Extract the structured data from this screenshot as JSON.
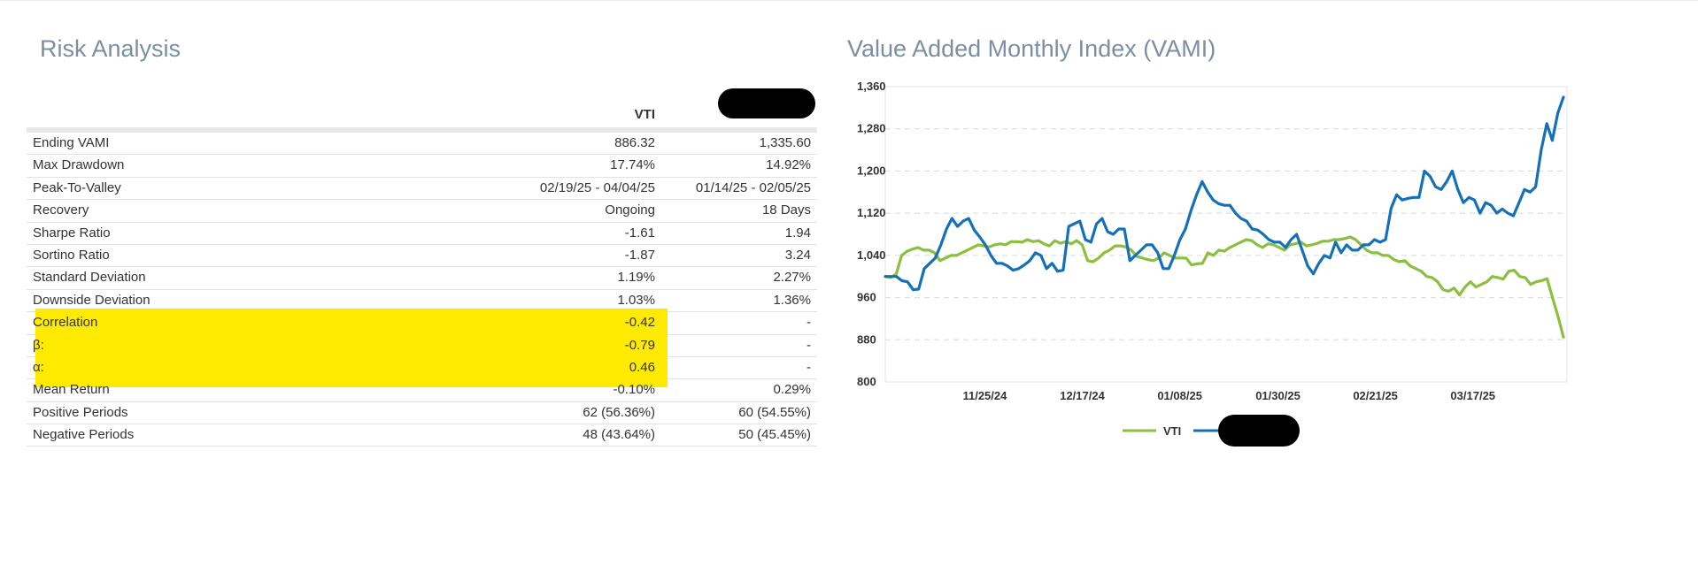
{
  "risk": {
    "title": "Risk Analysis",
    "header": {
      "col1": "VTI"
    },
    "rows": [
      {
        "label": "Ending VAMI",
        "vti": "886.32",
        "other": "1,335.60"
      },
      {
        "label": "Max Drawdown",
        "vti": "17.74%",
        "other": "14.92%"
      },
      {
        "label": "Peak-To-Valley",
        "vti": "02/19/25 - 04/04/25",
        "other": "01/14/25 - 02/05/25"
      },
      {
        "label": "Recovery",
        "vti": "Ongoing",
        "other": "18 Days"
      },
      {
        "label": "Sharpe Ratio",
        "vti": "-1.61",
        "other": "1.94"
      },
      {
        "label": "Sortino Ratio",
        "vti": "-1.87",
        "other": "3.24"
      },
      {
        "label": "Standard Deviation",
        "vti": "1.19%",
        "other": "2.27%"
      },
      {
        "label": "Downside Deviation",
        "vti": "1.03%",
        "other": "1.36%"
      },
      {
        "label": "Correlation",
        "vti": "-0.42",
        "other": "-"
      },
      {
        "label": "β:",
        "vti": "-0.79",
        "other": "-"
      },
      {
        "label": "α:",
        "vti": "0.46",
        "other": "-"
      },
      {
        "label": "Mean Return",
        "vti": "-0.10%",
        "other": "0.29%"
      },
      {
        "label": "Positive Periods",
        "vti": "62 (56.36%)",
        "other": "60 (54.55%)"
      },
      {
        "label": "Negative Periods",
        "vti": "48 (43.64%)",
        "other": "50 (45.45%)"
      }
    ],
    "highlight_color": "#ffeb00"
  },
  "vami": {
    "title": "Value Added Monthly Index (VAMI)"
  },
  "chart_data": {
    "type": "line",
    "title": "Value Added Monthly Index (VAMI)",
    "x_ticks": [
      "11/25/24",
      "12/17/24",
      "01/08/25",
      "01/30/25",
      "02/21/25",
      "03/17/25"
    ],
    "y_ticks": [
      800,
      880,
      960,
      1040,
      1120,
      1200,
      1280,
      1360
    ],
    "ylim": [
      800,
      1360
    ],
    "grid": "horizontal dashed",
    "legend_placement": "bottom-center",
    "series": [
      {
        "name": "VTI",
        "color": "#8cbf3f",
        "values": [
          1000,
          998,
          1005,
          1040,
          1048,
          1052,
          1055,
          1050,
          1050,
          1045,
          1030,
          1035,
          1040,
          1040,
          1045,
          1050,
          1055,
          1060,
          1058,
          1056,
          1060,
          1062,
          1060,
          1066,
          1066,
          1065,
          1070,
          1066,
          1068,
          1062,
          1058,
          1068,
          1063,
          1066,
          1062,
          1068,
          1060,
          1030,
          1028,
          1035,
          1045,
          1050,
          1058,
          1058,
          1056,
          1050,
          1038,
          1035,
          1032,
          1030,
          1035,
          1045,
          1040,
          1035,
          1035,
          1035,
          1022,
          1024,
          1025,
          1045,
          1040,
          1050,
          1048,
          1055,
          1060,
          1065,
          1070,
          1068,
          1060,
          1055,
          1062,
          1060,
          1055,
          1050,
          1060,
          1062,
          1065,
          1058,
          1060,
          1063,
          1067,
          1067,
          1070,
          1070,
          1072,
          1075,
          1070,
          1060,
          1050,
          1045,
          1045,
          1040,
          1040,
          1032,
          1028,
          1030,
          1020,
          1015,
          1010,
          1000,
          998,
          990,
          975,
          972,
          978,
          965,
          980,
          990,
          980,
          985,
          990,
          1000,
          998,
          995,
          1010,
          1012,
          1000,
          998,
          985,
          990,
          992,
          996,
          960,
          925,
          885
        ]
      },
      {
        "name": "",
        "color": "#1570b8",
        "values": [
          1000,
          1000,
          1000,
          992,
          990,
          975,
          976,
          1015,
          1025,
          1035,
          1060,
          1090,
          1110,
          1095,
          1105,
          1110,
          1088,
          1075,
          1060,
          1040,
          1025,
          1025,
          1020,
          1012,
          1015,
          1022,
          1030,
          1045,
          1040,
          1015,
          1025,
          1010,
          1012,
          1095,
          1100,
          1105,
          1070,
          1065,
          1100,
          1110,
          1085,
          1080,
          1090,
          1090,
          1030,
          1040,
          1050,
          1060,
          1060,
          1045,
          1015,
          1015,
          1040,
          1070,
          1090,
          1125,
          1155,
          1180,
          1160,
          1145,
          1138,
          1135,
          1135,
          1120,
          1110,
          1105,
          1090,
          1088,
          1080,
          1070,
          1065,
          1065,
          1055,
          1070,
          1080,
          1050,
          1020,
          1005,
          1025,
          1040,
          1035,
          1065,
          1045,
          1060,
          1050,
          1050,
          1060,
          1060,
          1070,
          1065,
          1070,
          1130,
          1155,
          1145,
          1148,
          1150,
          1150,
          1200,
          1190,
          1170,
          1165,
          1180,
          1200,
          1165,
          1140,
          1150,
          1145,
          1120,
          1140,
          1135,
          1120,
          1128,
          1120,
          1115,
          1140,
          1165,
          1160,
          1170,
          1240,
          1290,
          1258,
          1310,
          1340
        ]
      }
    ]
  }
}
